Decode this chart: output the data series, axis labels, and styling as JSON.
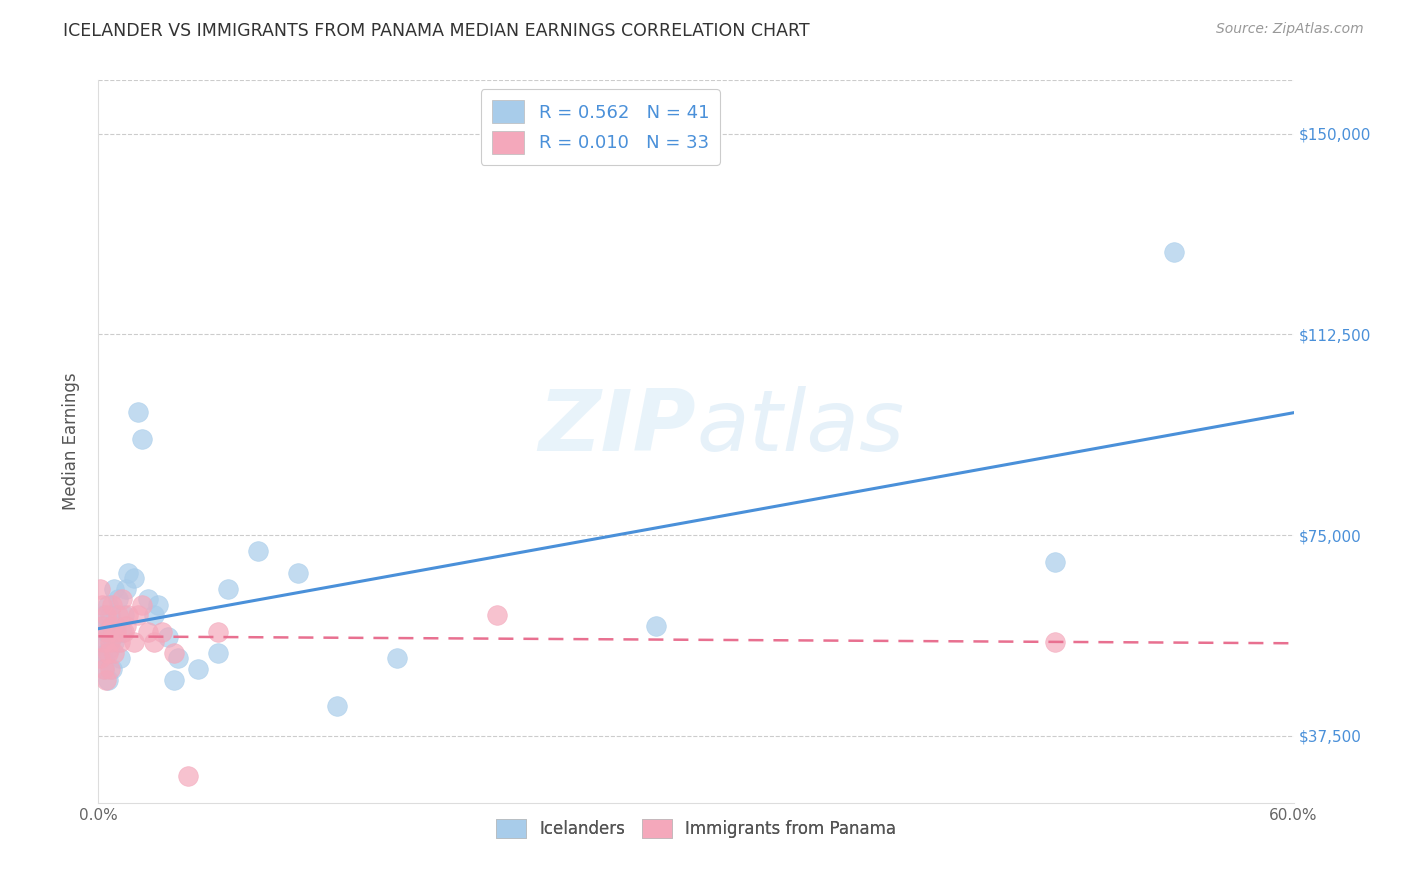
{
  "title": "ICELANDER VS IMMIGRANTS FROM PANAMA MEDIAN EARNINGS CORRELATION CHART",
  "source": "Source: ZipAtlas.com",
  "ylabel": "Median Earnings",
  "yticks": [
    37500,
    75000,
    112500,
    150000
  ],
  "ytick_labels": [
    "$37,500",
    "$75,000",
    "$112,500",
    "$150,000"
  ],
  "xlim": [
    0.0,
    0.6
  ],
  "ylim": [
    25000,
    160000
  ],
  "watermark": "ZIPatlas",
  "legend_r1": "R = 0.562",
  "legend_n1": "N = 41",
  "legend_r2": "R = 0.010",
  "legend_n2": "N = 33",
  "color_blue": "#A8CCEA",
  "color_pink": "#F4A8BB",
  "line_blue": "#4A90D9",
  "line_pink": "#E87090",
  "tick_color_right": "#4A90D9",
  "icelanders_x": [
    0.001,
    0.002,
    0.002,
    0.003,
    0.003,
    0.004,
    0.004,
    0.005,
    0.005,
    0.006,
    0.006,
    0.007,
    0.007,
    0.008,
    0.008,
    0.009,
    0.01,
    0.011,
    0.012,
    0.013,
    0.014,
    0.015,
    0.018,
    0.02,
    0.022,
    0.025,
    0.028,
    0.03,
    0.035,
    0.038,
    0.04,
    0.05,
    0.06,
    0.065,
    0.08,
    0.1,
    0.12,
    0.15,
    0.28,
    0.48,
    0.54
  ],
  "icelanders_y": [
    55000,
    58000,
    52000,
    60000,
    50000,
    57000,
    53000,
    62000,
    48000,
    54000,
    60000,
    56000,
    50000,
    65000,
    55000,
    58000,
    63000,
    52000,
    57000,
    60000,
    65000,
    68000,
    67000,
    98000,
    93000,
    63000,
    60000,
    62000,
    56000,
    48000,
    52000,
    50000,
    53000,
    65000,
    72000,
    68000,
    43000,
    52000,
    58000,
    70000,
    128000
  ],
  "panama_x": [
    0.001,
    0.001,
    0.002,
    0.002,
    0.003,
    0.003,
    0.004,
    0.004,
    0.005,
    0.005,
    0.006,
    0.006,
    0.007,
    0.007,
    0.008,
    0.009,
    0.01,
    0.011,
    0.012,
    0.013,
    0.014,
    0.015,
    0.018,
    0.02,
    0.022,
    0.025,
    0.028,
    0.032,
    0.038,
    0.045,
    0.06,
    0.2,
    0.48
  ],
  "panama_y": [
    52000,
    65000,
    58000,
    62000,
    50000,
    55000,
    48000,
    60000,
    53000,
    57000,
    55000,
    50000,
    62000,
    58000,
    53000,
    57000,
    60000,
    55000,
    63000,
    57000,
    58000,
    60000,
    55000,
    60000,
    62000,
    57000,
    55000,
    57000,
    53000,
    30000,
    57000,
    60000,
    55000
  ],
  "legend_label_1": "Icelanders",
  "legend_label_2": "Immigrants from Panama"
}
